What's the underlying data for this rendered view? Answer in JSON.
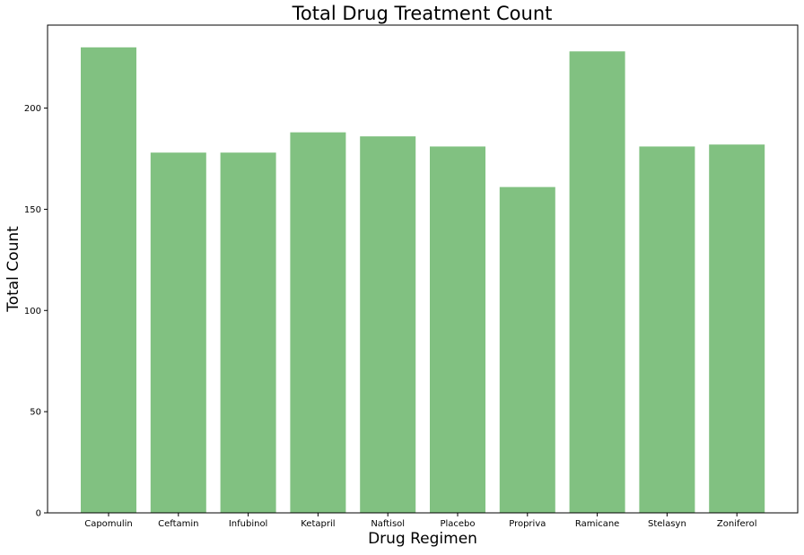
{
  "chart_data": {
    "type": "bar",
    "title": "Total Drug Treatment Count",
    "xlabel": "Drug Regimen",
    "ylabel": "Total Count",
    "categories": [
      "Capomulin",
      "Ceftamin",
      "Infubinol",
      "Ketapril",
      "Naftisol",
      "Placebo",
      "Propriva",
      "Ramicane",
      "Stelasyn",
      "Zoniferol"
    ],
    "values": [
      230,
      178,
      178,
      188,
      186,
      181,
      161,
      228,
      181,
      182
    ],
    "ylim": [
      0,
      241
    ],
    "yticks": [
      0,
      50,
      100,
      150,
      200
    ],
    "grid": false,
    "legend": "none",
    "bar_color": "#81c181"
  }
}
